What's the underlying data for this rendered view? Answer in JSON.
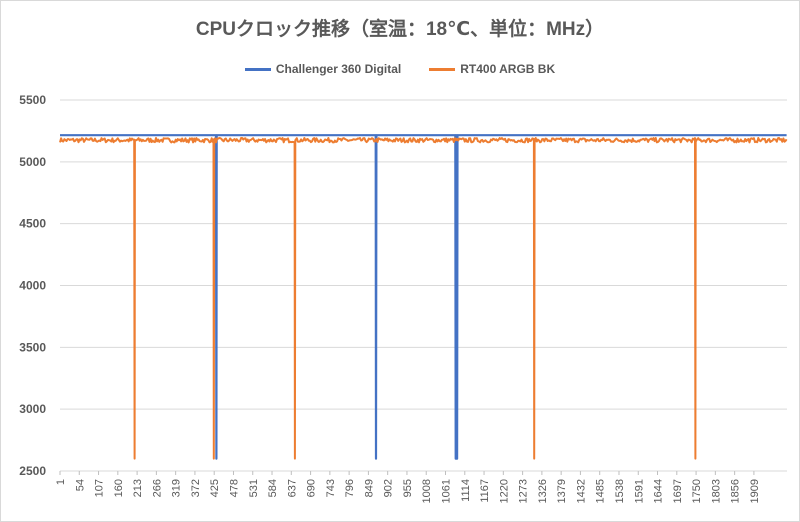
{
  "chart_data": {
    "type": "line",
    "title": "CPUクロック推移（室温：18℃、単位：MHz）",
    "xlabel": "",
    "ylabel": "",
    "ylim": [
      2500,
      5500
    ],
    "yticks": [
      2500,
      3000,
      3500,
      4000,
      4500,
      5000,
      5500
    ],
    "xlim": [
      1,
      2000
    ],
    "xticks": [
      1,
      54,
      107,
      160,
      213,
      266,
      319,
      372,
      425,
      478,
      531,
      584,
      637,
      690,
      743,
      796,
      849,
      902,
      955,
      1008,
      1061,
      1114,
      1167,
      1220,
      1273,
      1326,
      1379,
      1432,
      1485,
      1538,
      1591,
      1644,
      1697,
      1750,
      1803,
      1856,
      1909
    ],
    "grid": true,
    "legend_position": "top",
    "series": [
      {
        "name": "Challenger 360 Digital",
        "color": "#4472c4",
        "baseline": 5215,
        "dips": [
          [
            431,
            2600
          ],
          [
            870,
            2600
          ],
          [
            1089,
            2600
          ],
          [
            1093,
            2600
          ]
        ]
      },
      {
        "name": "RT400 ARGB BK",
        "color": "#ed7d31",
        "baseline": 5175,
        "noise": 18,
        "dips": [
          [
            206,
            2600
          ],
          [
            424,
            2600
          ],
          [
            647,
            2600
          ],
          [
            1305,
            2600
          ],
          [
            1748,
            2600
          ]
        ]
      }
    ]
  }
}
